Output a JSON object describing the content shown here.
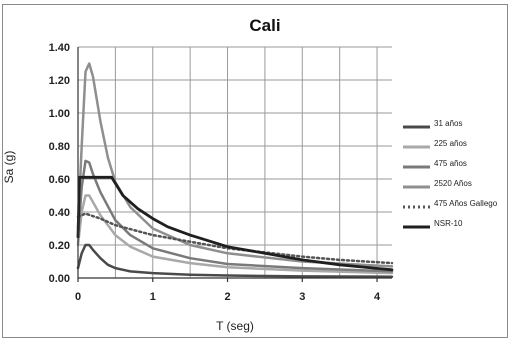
{
  "chart_data": {
    "type": "line",
    "title": "Cali",
    "xlabel": "T (seg)",
    "ylabel": "Sa (g)",
    "xlim": [
      0,
      4.2
    ],
    "ylim": [
      0,
      1.4
    ],
    "x_ticks": [
      0,
      1,
      2,
      3,
      4
    ],
    "x_tick_labels": [
      "0",
      "1",
      "2",
      "3",
      "4"
    ],
    "y_ticks": [
      0,
      0.2,
      0.4,
      0.6,
      0.8,
      1.0,
      1.2,
      1.4
    ],
    "y_tick_labels": [
      "0.00",
      "0.20",
      "0.40",
      "0.60",
      "0.80",
      "1.00",
      "1.20",
      "1.40"
    ],
    "grid": true,
    "legend_position": "right",
    "series": [
      {
        "name": "31 años",
        "color": "#4a4a4a",
        "width": 2.5,
        "dash": "",
        "x": [
          0,
          0.05,
          0.1,
          0.15,
          0.2,
          0.3,
          0.4,
          0.5,
          0.7,
          1.0,
          1.5,
          2.0,
          3.0,
          4.2
        ],
        "y": [
          0.06,
          0.15,
          0.2,
          0.2,
          0.17,
          0.12,
          0.08,
          0.06,
          0.04,
          0.03,
          0.02,
          0.015,
          0.01,
          0.008
        ]
      },
      {
        "name": "225 años",
        "color": "#a9a9a9",
        "width": 2.5,
        "dash": "",
        "x": [
          0,
          0.05,
          0.1,
          0.15,
          0.2,
          0.3,
          0.5,
          0.7,
          1.0,
          1.5,
          2.0,
          3.0,
          4.2
        ],
        "y": [
          0.2,
          0.4,
          0.5,
          0.5,
          0.46,
          0.38,
          0.26,
          0.19,
          0.13,
          0.09,
          0.065,
          0.045,
          0.03
        ]
      },
      {
        "name": "475 años",
        "color": "#7a7a7a",
        "width": 2.5,
        "dash": "",
        "x": [
          0,
          0.05,
          0.1,
          0.15,
          0.2,
          0.3,
          0.5,
          0.7,
          1.0,
          1.5,
          2.0,
          3.0,
          4.2
        ],
        "y": [
          0.25,
          0.55,
          0.71,
          0.7,
          0.63,
          0.52,
          0.35,
          0.26,
          0.18,
          0.12,
          0.085,
          0.06,
          0.04
        ]
      },
      {
        "name": "2520 Años",
        "color": "#8f8f8f",
        "width": 2.5,
        "dash": "",
        "x": [
          0,
          0.05,
          0.1,
          0.15,
          0.2,
          0.3,
          0.4,
          0.5,
          0.7,
          1.0,
          1.5,
          2.0,
          3.0,
          4.2
        ],
        "y": [
          0.3,
          0.8,
          1.25,
          1.3,
          1.22,
          0.95,
          0.73,
          0.58,
          0.43,
          0.3,
          0.2,
          0.15,
          0.1,
          0.07
        ]
      },
      {
        "name": "475 Años Gallego",
        "color": "#555555",
        "width": 2.5,
        "dash": "2,3",
        "x": [
          0,
          0.1,
          0.3,
          0.5,
          1.0,
          1.5,
          2.0,
          2.5,
          3.0,
          3.5,
          4.2
        ],
        "y": [
          0.37,
          0.39,
          0.36,
          0.32,
          0.26,
          0.22,
          0.18,
          0.155,
          0.13,
          0.11,
          0.09
        ]
      },
      {
        "name": "NSR-10",
        "color": "#1f1f1f",
        "width": 2.8,
        "dash": "",
        "x": [
          0,
          0.02,
          0.45,
          0.6,
          0.8,
          1.0,
          1.2,
          1.5,
          2.0,
          2.5,
          3.0,
          3.5,
          4.2
        ],
        "y": [
          0.25,
          0.61,
          0.61,
          0.5,
          0.42,
          0.36,
          0.31,
          0.26,
          0.19,
          0.15,
          0.11,
          0.08,
          0.05
        ]
      }
    ]
  }
}
